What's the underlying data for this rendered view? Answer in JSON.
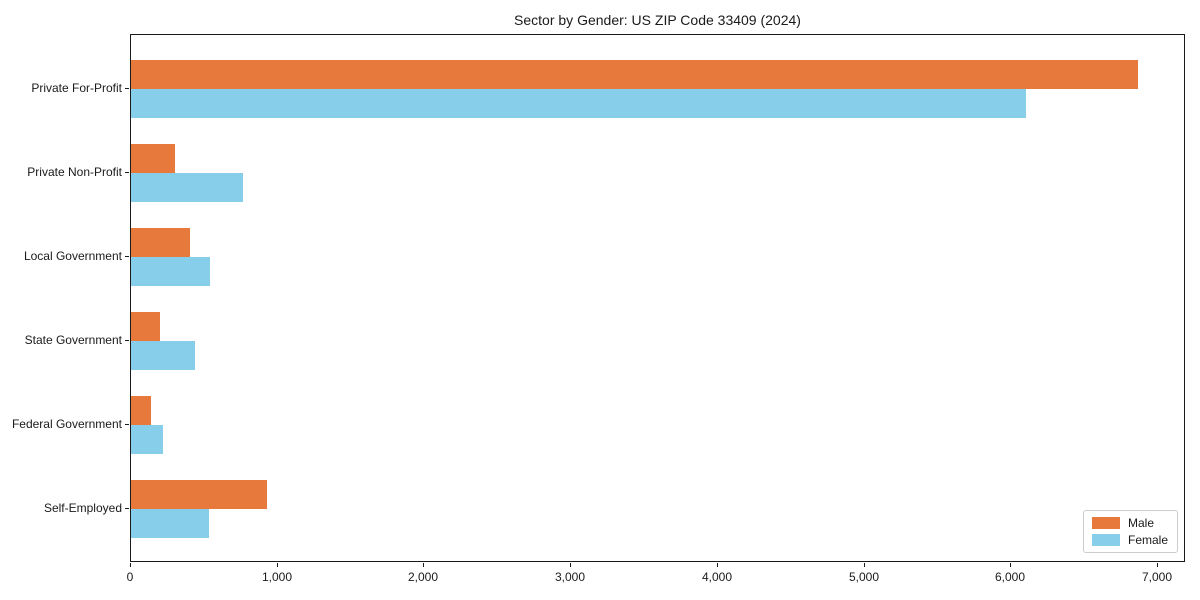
{
  "chart_data": {
    "type": "bar",
    "orientation": "horizontal",
    "title": "Sector by Gender: US ZIP Code 33409 (2024)",
    "categories": [
      "Private For-Profit",
      "Private Non-Profit",
      "Local Government",
      "State Government",
      "Federal Government",
      "Self-Employed"
    ],
    "series": [
      {
        "name": "Male",
        "color": "#e8793d",
        "values": [
          6860,
          300,
          400,
          200,
          135,
          930
        ]
      },
      {
        "name": "Female",
        "color": "#87ceeb",
        "values": [
          6100,
          760,
          540,
          435,
          215,
          530
        ]
      }
    ],
    "xlim": [
      0,
      7190
    ],
    "x_ticks": [
      0,
      1000,
      2000,
      3000,
      4000,
      5000,
      6000,
      7000
    ],
    "x_tick_labels": [
      "0",
      "1,000",
      "2,000",
      "3,000",
      "4,000",
      "5,000",
      "6,000",
      "7,000"
    ],
    "xlabel": "",
    "ylabel": "",
    "grid": false,
    "legend": {
      "position": "lower right",
      "entries": [
        "Male",
        "Female"
      ]
    }
  }
}
